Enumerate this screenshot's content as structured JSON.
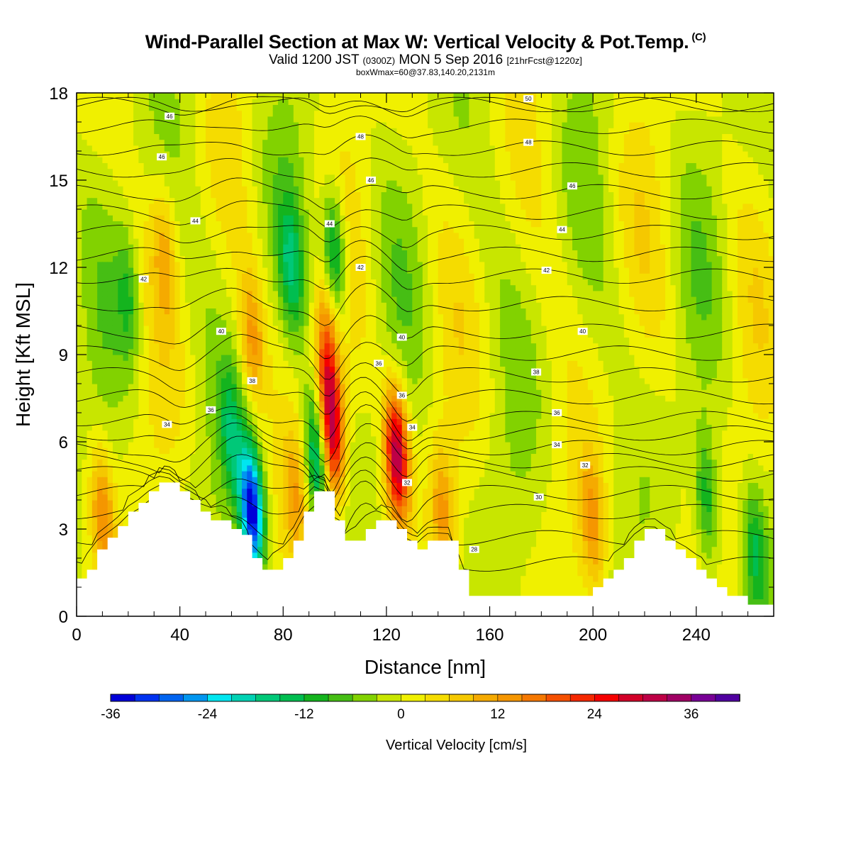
{
  "header": {
    "title": "Wind-Parallel Section at Max W: Vertical Velocity & Pot.Temp.",
    "title_suffix": "(C)",
    "subtitle_a": "Valid 1200 JST",
    "subtitle_b": "(0300Z)",
    "subtitle_c": "MON 5 Sep 2016",
    "subtitle_d": "[21hrFcst@1220z]",
    "subtitle2": "boxWmax=60@37.83,140.20,2131m"
  },
  "chart_data": {
    "type": "heatmap",
    "xlabel": "Distance [nm]",
    "ylabel": "Height [Kft MSL]",
    "xlim": [
      0,
      270
    ],
    "ylim": [
      0,
      18
    ],
    "x_ticks": [
      "0",
      "40",
      "80",
      "120",
      "160",
      "200",
      "240"
    ],
    "y_ticks": [
      "0",
      "3",
      "6",
      "9",
      "12",
      "15",
      "18"
    ],
    "colorbar": {
      "title": "Vertical Velocity [cm/s]",
      "tick_labels": [
        "-36",
        "-24",
        "-12",
        "0",
        "12",
        "24",
        "36"
      ],
      "min": -36,
      "max": 42,
      "step": 3,
      "colors": [
        "#0000d8",
        "#0032f0",
        "#0064f0",
        "#0096f0",
        "#00e6f0",
        "#00d2b4",
        "#00c878",
        "#00be50",
        "#14b41e",
        "#46be14",
        "#82d200",
        "#c8e600",
        "#f0f000",
        "#f5dc00",
        "#f5c800",
        "#f5aa00",
        "#f59600",
        "#f57800",
        "#f55000",
        "#f52800",
        "#f50000",
        "#d20028",
        "#be0046",
        "#a00064",
        "#780096",
        "#5000a0"
      ]
    },
    "terrain": {
      "x": [
        0,
        4,
        8,
        12,
        16,
        20,
        24,
        28,
        32,
        36,
        40,
        44,
        48,
        52,
        56,
        60,
        64,
        68,
        72,
        76,
        80,
        84,
        88,
        92,
        96,
        100,
        104,
        108,
        112,
        116,
        120,
        124,
        128,
        132,
        136,
        140,
        144,
        148,
        152,
        156,
        160,
        164,
        168,
        172,
        176,
        180,
        184,
        188,
        192,
        196,
        200,
        204,
        208,
        212,
        216,
        220,
        224,
        228,
        232,
        236,
        240,
        244,
        248,
        252,
        256,
        260,
        264,
        268,
        270
      ],
      "z": [
        1.3,
        1.6,
        2.3,
        2.7,
        3.1,
        3.6,
        3.9,
        4.3,
        4.6,
        4.6,
        4.3,
        4.0,
        3.6,
        3.3,
        3.3,
        3.0,
        2.8,
        2.0,
        1.6,
        1.6,
        2.0,
        2.6,
        3.6,
        4.3,
        4.3,
        3.3,
        2.6,
        2.6,
        3.0,
        3.3,
        3.3,
        3.0,
        2.6,
        2.3,
        2.6,
        2.6,
        2.6,
        1.6,
        0.7,
        0.7,
        0.7,
        0.7,
        0.7,
        0.7,
        0.7,
        0.7,
        0.7,
        0.7,
        0.7,
        0.7,
        1.0,
        1.3,
        1.6,
        2.0,
        2.6,
        3.0,
        3.0,
        2.6,
        2.3,
        2.0,
        1.6,
        1.3,
        1.0,
        0.7,
        0.7,
        0.4,
        0.4,
        0.4,
        0.4
      ]
    },
    "updraft_cores": [
      {
        "x": 99,
        "z": 6.3,
        "w": 30
      },
      {
        "x": 124,
        "z": 5.6,
        "w": 33
      },
      {
        "x": 97,
        "z": 9.0,
        "w": 18
      },
      {
        "x": 68,
        "z": 9.5,
        "w": 12
      },
      {
        "x": 34,
        "z": 12.5,
        "w": 9
      },
      {
        "x": 200,
        "z": 3.2,
        "w": 12
      },
      {
        "x": 10,
        "z": 3.5,
        "w": 14
      },
      {
        "x": 142,
        "z": 3.5,
        "w": 12
      },
      {
        "x": 85,
        "z": 4.0,
        "w": 10
      }
    ],
    "downdraft_cores": [
      {
        "x": 68,
        "z": 3.6,
        "w": -36
      },
      {
        "x": 93,
        "z": 5.5,
        "w": -18
      },
      {
        "x": 100,
        "z": 12.5,
        "w": -18
      },
      {
        "x": 83,
        "z": 12.0,
        "w": -12
      },
      {
        "x": 244,
        "z": 4.0,
        "w": -12
      },
      {
        "x": 263,
        "z": 2.2,
        "w": -12
      },
      {
        "x": 20,
        "z": 11.0,
        "w": -9
      },
      {
        "x": 60,
        "z": 6.2,
        "w": -12
      }
    ],
    "theta_contours": [
      {
        "value": 28,
        "label": "28",
        "label_x": 154,
        "label_z": 2.3
      },
      {
        "value": 30,
        "label": "30",
        "label_x": 179,
        "label_z": 4.1
      },
      {
        "value": 32,
        "label": "32",
        "label_x": 197,
        "label_z": 5.2
      },
      {
        "value": 34,
        "label": "34",
        "label_x": 186,
        "label_z": 5.9
      },
      {
        "value": 36,
        "label": "36",
        "label_x": 186,
        "label_z": 7.0
      },
      {
        "value": 38,
        "label": "38",
        "label_x": 178,
        "label_z": 8.4
      },
      {
        "value": 40,
        "label": "40",
        "label_x": 196,
        "label_z": 9.8
      },
      {
        "value": 42,
        "label": "42",
        "label_x": 182,
        "label_z": 11.9
      },
      {
        "value": 44,
        "label": "44",
        "label_x": 188,
        "label_z": 13.3
      },
      {
        "value": 46,
        "label": "46",
        "label_x": 192,
        "label_z": 14.8
      },
      {
        "value": 48,
        "label": "48",
        "label_x": 175,
        "label_z": 16.3
      },
      {
        "value": 50,
        "label": "50",
        "label_x": 175,
        "label_z": 17.8
      }
    ],
    "extra_contour_labels": [
      {
        "label": "46",
        "x": 36,
        "z": 17.2
      },
      {
        "label": "46",
        "x": 33,
        "z": 15.8
      },
      {
        "label": "44",
        "x": 46,
        "z": 13.6
      },
      {
        "label": "42",
        "x": 26,
        "z": 11.6
      },
      {
        "label": "40",
        "x": 56,
        "z": 9.8
      },
      {
        "label": "38",
        "x": 68,
        "z": 8.1
      },
      {
        "label": "36",
        "x": 52,
        "z": 7.1
      },
      {
        "label": "34",
        "x": 35,
        "z": 6.6
      },
      {
        "label": "48",
        "x": 110,
        "z": 16.5
      },
      {
        "label": "46",
        "x": 114,
        "z": 15.0
      },
      {
        "label": "44",
        "x": 98,
        "z": 13.5
      },
      {
        "label": "42",
        "x": 110,
        "z": 12.0
      },
      {
        "label": "40",
        "x": 126,
        "z": 9.6
      },
      {
        "label": "36",
        "x": 117,
        "z": 8.7
      },
      {
        "label": "36",
        "x": 126,
        "z": 7.6
      },
      {
        "label": "34",
        "x": 130,
        "z": 6.5
      },
      {
        "label": "32",
        "x": 128,
        "z": 4.6
      }
    ]
  }
}
